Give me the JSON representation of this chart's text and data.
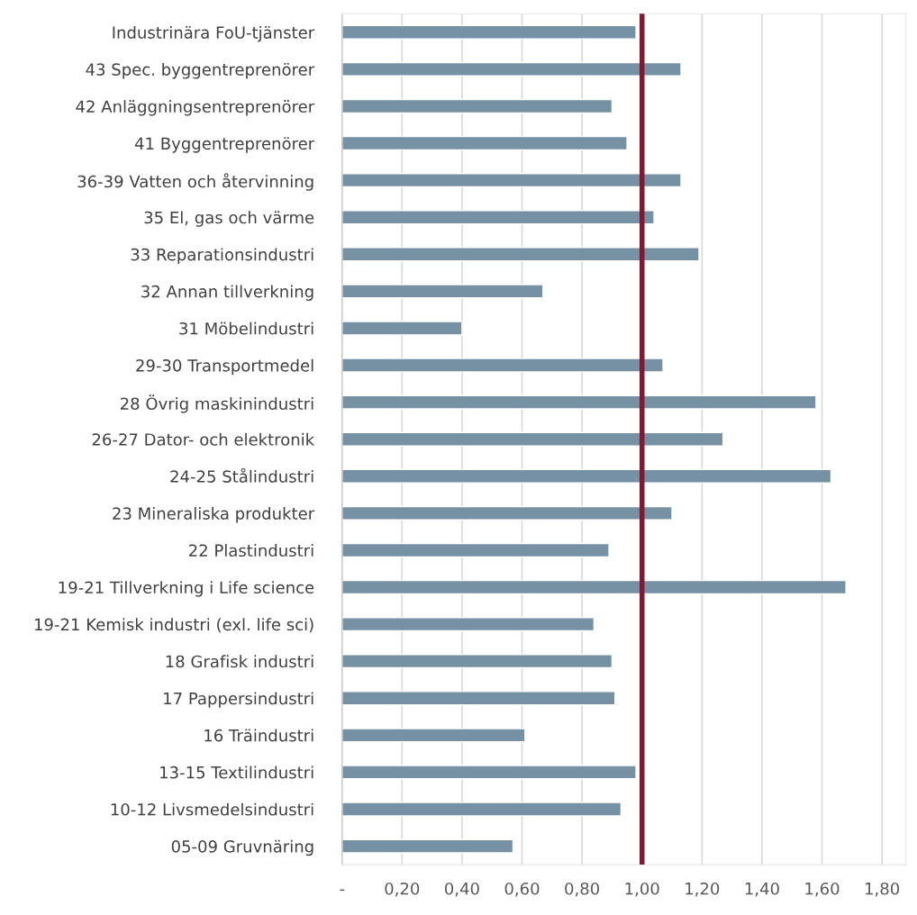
{
  "chart_data": {
    "type": "bar",
    "orientation": "horizontal",
    "categories": [
      "Industrinära FoU-tjänster",
      "43 Spec. byggentreprenörer",
      "42 Anläggningsentreprenörer",
      "41 Byggentreprenörer",
      "36-39 Vatten och återvinning",
      "35 El, gas och värme",
      "33 Reparationsindustri",
      "32 Annan tillverkning",
      "31 Möbelindustri",
      "29-30 Transportmedel",
      "28 Övrig maskinindustri",
      "26-27 Dator- och elektronik",
      "24-25 Stålindustri",
      "23 Mineraliska produkter",
      "22 Plastindustri",
      "19-21 Tillverkning i Life science",
      "19-21 Kemisk industri (exl. life sci)",
      "18 Grafisk industri",
      "17 Pappersindustri",
      "16 Träindustri",
      "13-15 Textilindustri",
      "10-12 Livsmedelsindustri",
      "05-09 Gruvnäring"
    ],
    "values": [
      0.98,
      1.13,
      0.9,
      0.95,
      1.13,
      1.04,
      1.19,
      0.67,
      0.4,
      1.07,
      1.58,
      1.27,
      1.63,
      1.1,
      0.89,
      1.68,
      0.84,
      0.9,
      0.91,
      0.61,
      0.98,
      0.93,
      0.57
    ],
    "color": "#7591a3",
    "xlim": [
      0,
      1.88
    ],
    "xticks": [
      {
        "value": 0,
        "label": "-"
      },
      {
        "value": 0.2,
        "label": "0,20"
      },
      {
        "value": 0.4,
        "label": "0,40"
      },
      {
        "value": 0.6,
        "label": "0,60"
      },
      {
        "value": 0.8,
        "label": "0,80"
      },
      {
        "value": 1.0,
        "label": "1,00"
      },
      {
        "value": 1.2,
        "label": "1,20"
      },
      {
        "value": 1.4,
        "label": "1,40"
      },
      {
        "value": 1.6,
        "label": "1,60"
      },
      {
        "value": 1.8,
        "label": "1,80"
      }
    ],
    "grid": "x",
    "ref_lines": [
      {
        "axis": "x",
        "value": 1.0,
        "color": "#7b1c34"
      }
    ]
  }
}
